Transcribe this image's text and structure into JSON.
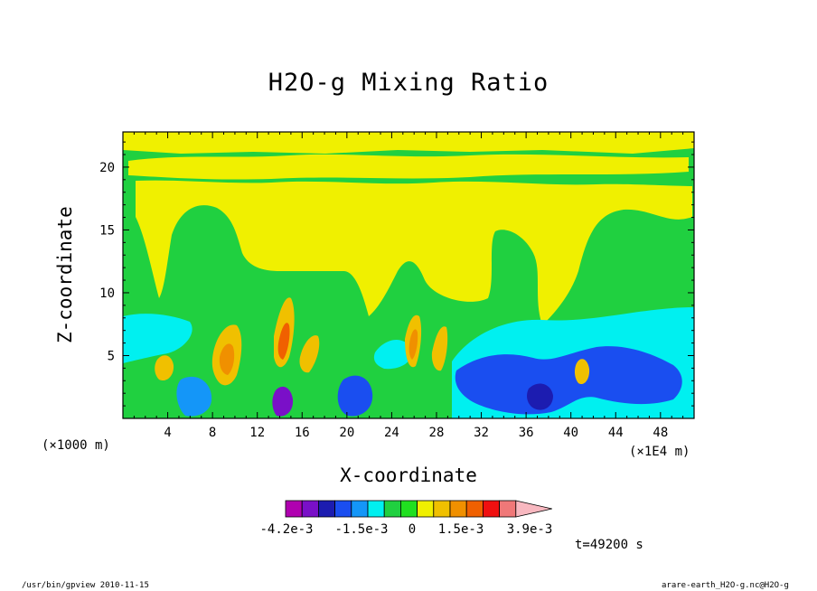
{
  "chart_data": {
    "type": "heatmap",
    "title": "H2O-g Mixing Ratio",
    "xlabel": "X-coordinate",
    "ylabel": "Z-coordinate",
    "x_unit_label": "(×1000 m)",
    "x_scale_label": "(×1E4 m)",
    "xlim": [
      0,
      51
    ],
    "ylim": [
      0,
      22.8
    ],
    "x_ticks": [
      "4",
      "8",
      "12",
      "16",
      "20",
      "24",
      "28",
      "32",
      "36",
      "40",
      "44",
      "48"
    ],
    "y_ticks": [
      "5",
      "10",
      "15",
      "20"
    ],
    "colorbar": {
      "colors": [
        "#b000b0",
        "#7a10c8",
        "#1c1cb0",
        "#1a4ef0",
        "#1496f8",
        "#00f0f0",
        "#20d040",
        "#20e020",
        "#f0f000",
        "#f0c000",
        "#f09000",
        "#f06000",
        "#f01010",
        "#f07878",
        "#f8b8c0"
      ],
      "labels": [
        "-4.2e-3",
        "-1.5e-3",
        "0",
        "1.5e-3",
        "3.9e-3"
      ]
    },
    "time_label": "t=49200 s"
  },
  "footer": {
    "left": "/usr/bin/gpview  2010-11-15",
    "right": "arare-earth_H2O-g.nc@H2O-g"
  }
}
